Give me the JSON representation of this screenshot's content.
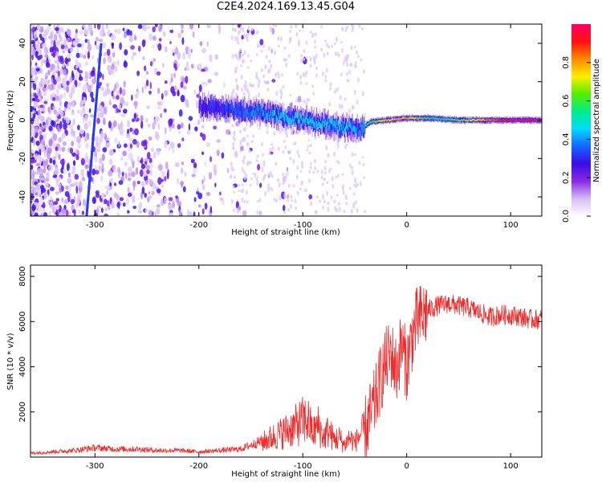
{
  "title": "C2E4.2024.169.13.45.G04",
  "chart_data": [
    {
      "type": "heatmap",
      "xlabel": "Height of straight line (km)",
      "ylabel": "Frequency (Hz)",
      "xlim": [
        -362,
        130
      ],
      "ylim": [
        -50,
        50
      ],
      "x_ticks": [
        -300,
        -200,
        -100,
        0,
        100
      ],
      "y_ticks": [
        -40,
        -20,
        0,
        20,
        40
      ],
      "colorbar": {
        "label": "Normalized spectral amplitude",
        "range": [
          0,
          1
        ],
        "ticks": [
          0.0,
          0.2,
          0.4,
          0.6,
          0.8
        ],
        "colormap": [
          "#ffffff",
          "#d6bdf5",
          "#8a2be2",
          "#3a0ae6",
          "#1565ff",
          "#00dcff",
          "#00ee88",
          "#55ee00",
          "#ffee00",
          "#ff8800",
          "#ff1010",
          "#ff0066"
        ]
      },
      "ridge": {
        "x": [
          -200,
          -180,
          -160,
          -140,
          -120,
          -100,
          -80,
          -60,
          -45,
          -35,
          -20,
          0,
          20,
          50,
          80,
          100,
          130
        ],
        "frequency": [
          7,
          6,
          5,
          4,
          2,
          0,
          -2,
          -4,
          -5,
          -1,
          0,
          1,
          1,
          0,
          0,
          0,
          0
        ],
        "amplitude": [
          0.25,
          0.3,
          0.35,
          0.4,
          0.45,
          0.45,
          0.45,
          0.45,
          0.4,
          0.6,
          0.75,
          0.8,
          0.55,
          0.6,
          0.85,
          0.95,
          0.95
        ]
      },
      "drift_line": {
        "x": [
          -308,
          -294
        ],
        "frequency": [
          -50,
          40
        ]
      },
      "grid": false
    },
    {
      "type": "line",
      "xlabel": "Height of straight line (km)",
      "ylabel": "SNR (10 * v/v)",
      "xlim": [
        -362,
        130
      ],
      "ylim": [
        0,
        8500
      ],
      "x_ticks": [
        -300,
        -200,
        -100,
        0,
        100
      ],
      "y_ticks": [
        2000,
        4000,
        6000,
        8000
      ],
      "color": "#ee2c2c",
      "series": [
        {
          "x": [
            -362,
            -340,
            -320,
            -300,
            -280,
            -260,
            -240,
            -220,
            -200,
            -180,
            -160,
            -140,
            -130,
            -120,
            -110,
            -100,
            -95,
            -90,
            -85,
            -80,
            -75,
            -70,
            -65,
            -60,
            -55,
            -50,
            -45,
            -40,
            -35,
            -30,
            -25,
            -20,
            -15,
            -10,
            -5,
            0,
            5,
            10,
            15,
            20,
            30,
            40,
            50,
            60,
            70,
            80,
            90,
            100,
            110,
            120,
            130
          ],
          "values": [
            150,
            200,
            250,
            350,
            300,
            300,
            250,
            250,
            200,
            250,
            300,
            600,
            800,
            1000,
            1200,
            1500,
            1500,
            1000,
            1300,
            800,
            1100,
            700,
            800,
            500,
            800,
            600,
            900,
            1200,
            1800,
            2500,
            3500,
            4200,
            4600,
            3800,
            5000,
            4000,
            5300,
            6000,
            6200,
            6500,
            6700,
            6800,
            6700,
            6600,
            6400,
            6200,
            6300,
            6300,
            6200,
            6100,
            6100
          ]
        }
      ],
      "grid": false
    }
  ]
}
